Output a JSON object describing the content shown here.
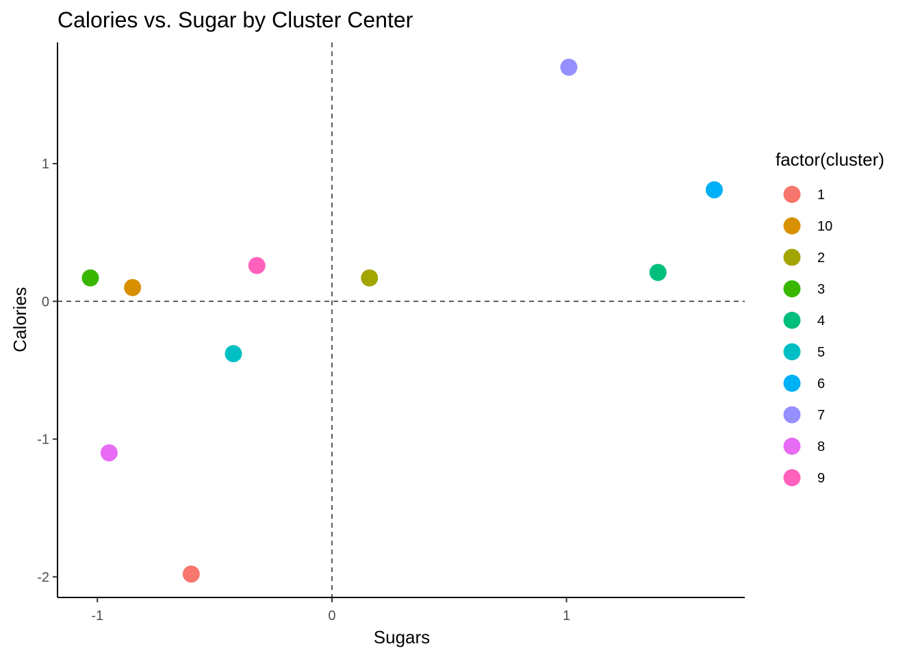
{
  "chart_data": {
    "type": "scatter",
    "title": "Calories vs. Sugar by Cluster Center",
    "xlabel": "Sugars",
    "ylabel": "Calories",
    "xlim": [
      -1.17,
      1.76
    ],
    "ylim": [
      -2.15,
      1.88
    ],
    "x_ticks": [
      -1,
      0,
      1
    ],
    "x_tick_labels": [
      "-1",
      "0",
      "1"
    ],
    "y_ticks": [
      -2,
      -1,
      0,
      1
    ],
    "y_tick_labels": [
      "-2",
      "-1",
      "0",
      "1"
    ],
    "grid": false,
    "reference_lines": {
      "x": 0,
      "y": 0,
      "style": "dashed"
    },
    "legend": {
      "title": "factor(cluster)",
      "position": "right"
    },
    "series": [
      {
        "name": "1",
        "color": "#F8766D",
        "x": -0.6,
        "y": -1.98
      },
      {
        "name": "10",
        "color": "#D89000",
        "x": -0.85,
        "y": 0.1
      },
      {
        "name": "2",
        "color": "#A3A500",
        "x": 0.16,
        "y": 0.17
      },
      {
        "name": "3",
        "color": "#39B600",
        "x": -1.03,
        "y": 0.17
      },
      {
        "name": "4",
        "color": "#00BF7D",
        "x": 1.39,
        "y": 0.21
      },
      {
        "name": "5",
        "color": "#00BFC4",
        "x": -0.42,
        "y": -0.38
      },
      {
        "name": "6",
        "color": "#00B0F6",
        "x": 1.63,
        "y": 0.81
      },
      {
        "name": "7",
        "color": "#9590FF",
        "x": 1.01,
        "y": 1.7
      },
      {
        "name": "8",
        "color": "#E76BF3",
        "x": -0.95,
        "y": -1.1
      },
      {
        "name": "9",
        "color": "#FF62BC",
        "x": -0.32,
        "y": 0.26
      }
    ]
  }
}
